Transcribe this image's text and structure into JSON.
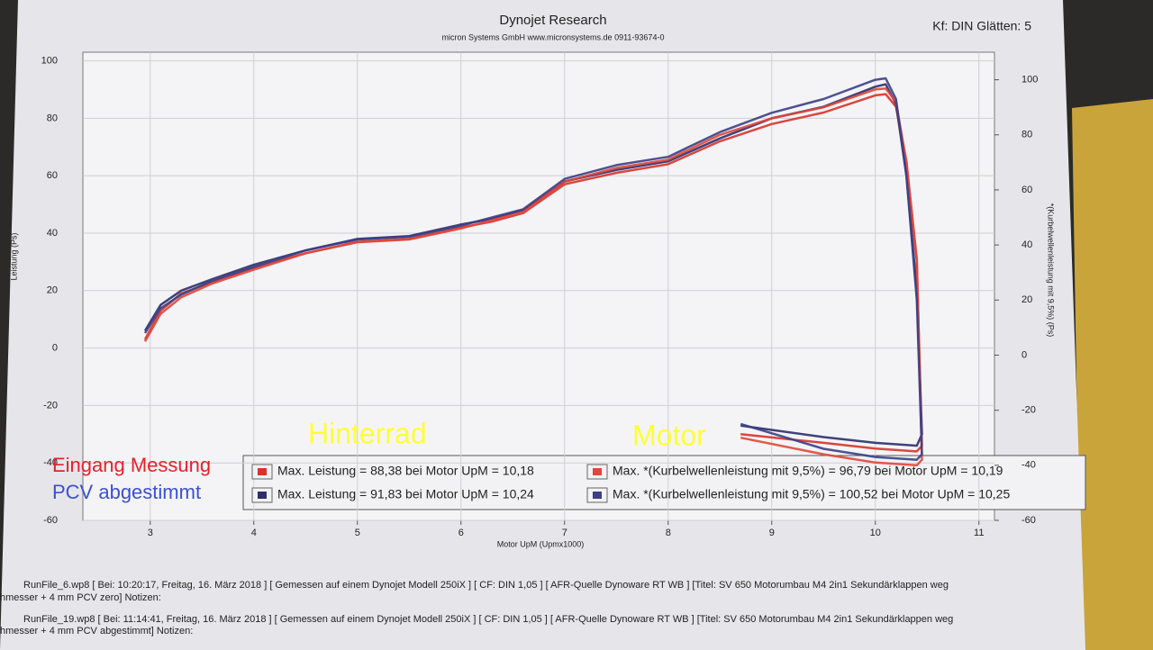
{
  "chart_data": {
    "type": "line",
    "title": "Dynojet Research",
    "subtitle": "micron Systems GmbH  www.micronsystems.de  0911-93674-0",
    "header_right": "Kf: DIN Glätten: 5",
    "x_label": "Motor UpM (Upmx1000)",
    "y_label": "Leistung (Ps)",
    "y2_label": "*(Kurbelwellenleistung mit 9,5%) (Ps)",
    "xlim": [
      2.35,
      11.15
    ],
    "xticks": [
      3,
      4,
      5,
      6,
      7,
      8,
      9,
      10,
      11
    ],
    "ylim": [
      -60,
      103
    ],
    "yticks": [
      -60,
      -40,
      -20,
      0,
      20,
      40,
      60,
      80,
      100
    ],
    "y2lim": [
      -60,
      110
    ],
    "y2ticks": [
      -60,
      -40,
      -20,
      0,
      20,
      40,
      60,
      80,
      100
    ],
    "grid": true,
    "x": [
      2.95,
      3.1,
      3.3,
      3.6,
      4,
      4.5,
      5,
      5.5,
      6,
      6.3,
      6.6,
      7,
      7.5,
      8,
      8.5,
      9,
      9.5,
      10,
      10.1,
      10.2,
      10.3,
      10.4,
      10.45,
      10.4,
      10,
      9.5,
      8.7
    ],
    "series": [
      {
        "name": "Max. Leistung = 88,38 bei Motor UpM = 10,18",
        "color": "#d8332c",
        "axis": "y",
        "values": [
          3,
          13,
          19,
          23,
          28,
          33,
          37,
          38,
          42,
          44,
          47,
          57,
          61,
          64,
          72,
          78,
          82,
          88,
          88.38,
          84,
          65,
          30,
          -34,
          -36,
          -35,
          -33,
          -30
        ]
      },
      {
        "name": "Max. Leistung = 91,83 bei Motor UpM = 10,24",
        "color": "#2b2f6b",
        "axis": "y",
        "values": [
          6,
          15,
          20,
          24,
          29,
          34,
          38,
          39,
          43,
          45,
          48,
          58,
          62,
          65,
          73,
          80,
          84,
          91,
          91.83,
          85,
          60,
          20,
          -30,
          -34,
          -33,
          -31,
          -27
        ]
      },
      {
        "name": "Max. *(Kurbelwellenleistung mit 9,5%) = 96,79 bei Motor UpM = 10,19",
        "color": "#e0463a",
        "axis": "y2",
        "values": [
          5,
          15,
          21,
          26,
          31,
          37,
          41,
          42,
          46,
          49,
          52,
          63,
          68,
          71,
          80,
          86,
          90,
          96.5,
          96.79,
          92,
          70,
          35,
          -38,
          -40,
          -39,
          -36,
          -30
        ]
      },
      {
        "name": "Max. *(Kurbelwellenleistung mit 9,5%) = 100,52 bei Motor UpM = 10,25",
        "color": "#3a3f86",
        "axis": "y2",
        "values": [
          8,
          17,
          22,
          27,
          32,
          38,
          42,
          43,
          47,
          50,
          53,
          64,
          69,
          72,
          81,
          88,
          93,
          100,
          100.52,
          93,
          65,
          20,
          -36,
          -38,
          -37,
          -34,
          -25
        ]
      }
    ],
    "annotations": [
      {
        "text": "Hinterrad",
        "color": "#ffff33"
      },
      {
        "text": "Motor",
        "color": "#ffff33"
      },
      {
        "text": "Eingang Messung",
        "color": "#e8202a"
      },
      {
        "text": "PCV abgestimmt",
        "color": "#3b4fd8"
      }
    ],
    "footer": [
      "RunFile_6.wp8 [ Bei: 10:20:17, Freitag, 16. März 2018 ] [ Gemessen auf einem Dynojet Modell 250iX ] [ CF: DIN 1,05 ] [ AFR-Quelle  Dynoware RT WB ] [Titel: SV 650 Motorumbau M4 2in1 Sekundärklappen weg",
      "hmesser + 4 mm PCV zero]  Notizen:",
      "RunFile_19.wp8 [ Bei: 11:14:41, Freitag, 16. März 2018 ] [ Gemessen auf einem Dynojet Modell 250iX ] [ CF: DIN 1,05 ] [ AFR-Quelle  Dynoware RT WB ] [Titel: SV 650 Motorumbau M4 2in1 Sekundärklappen weg",
      "hmesser + 4 mm PCV abgestimmt]  Notizen:"
    ]
  }
}
